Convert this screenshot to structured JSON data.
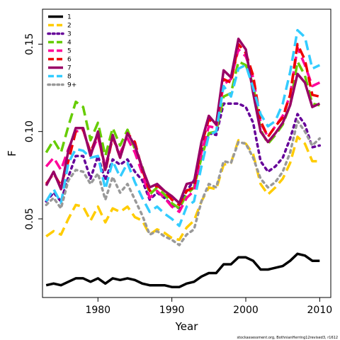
{
  "chart_data": {
    "type": "line",
    "title": "",
    "xlabel": "Year",
    "ylabel": "F",
    "xlim": [
      1972.5,
      2011.5
    ],
    "ylim": [
      0.005,
      0.17
    ],
    "xticks": [
      1980,
      1990,
      2000,
      2010
    ],
    "yticks": [
      0.05,
      0.1,
      0.15
    ],
    "ytick_labels": [
      "0.05",
      "0.10",
      "0.15"
    ],
    "grid": false,
    "legend_position": "top-left",
    "credit": "stockassessment.org, BothnianHerring12revised3, r1612",
    "x": [
      1973,
      1974,
      1975,
      1976,
      1977,
      1978,
      1979,
      1980,
      1981,
      1982,
      1983,
      1984,
      1985,
      1986,
      1987,
      1988,
      1989,
      1990,
      1991,
      1992,
      1993,
      1994,
      1995,
      1996,
      1997,
      1998,
      1999,
      2000,
      2001,
      2002,
      2003,
      2004,
      2005,
      2006,
      2007,
      2008,
      2009,
      2010
    ],
    "series": [
      {
        "name": "1",
        "color": "#000000",
        "dash": "solid",
        "values": [
          0.012,
          0.013,
          0.012,
          0.014,
          0.016,
          0.016,
          0.014,
          0.016,
          0.013,
          0.016,
          0.015,
          0.016,
          0.015,
          0.013,
          0.012,
          0.012,
          0.012,
          0.011,
          0.011,
          0.013,
          0.014,
          0.017,
          0.019,
          0.019,
          0.024,
          0.024,
          0.028,
          0.028,
          0.026,
          0.021,
          0.021,
          0.022,
          0.023,
          0.026,
          0.03,
          0.029,
          0.026,
          0.026
        ]
      },
      {
        "name": "2",
        "color": "#FFCC00",
        "dash": "dashed",
        "values": [
          0.04,
          0.043,
          0.041,
          0.05,
          0.058,
          0.057,
          0.049,
          0.057,
          0.048,
          0.056,
          0.054,
          0.057,
          0.051,
          0.049,
          0.041,
          0.044,
          0.042,
          0.039,
          0.038,
          0.045,
          0.049,
          0.06,
          0.068,
          0.067,
          0.081,
          0.082,
          0.095,
          0.093,
          0.087,
          0.07,
          0.064,
          0.068,
          0.073,
          0.082,
          0.097,
          0.093,
          0.083,
          0.083
        ]
      },
      {
        "name": "3",
        "color": "#660099",
        "dash": "dotted",
        "values": [
          0.06,
          0.065,
          0.06,
          0.074,
          0.086,
          0.086,
          0.073,
          0.086,
          0.072,
          0.084,
          0.081,
          0.084,
          0.077,
          0.072,
          0.061,
          0.065,
          0.062,
          0.058,
          0.056,
          0.066,
          0.072,
          0.088,
          0.099,
          0.098,
          0.116,
          0.116,
          0.116,
          0.114,
          0.105,
          0.083,
          0.077,
          0.08,
          0.085,
          0.096,
          0.11,
          0.104,
          0.091,
          0.092
        ]
      },
      {
        "name": "4",
        "color": "#66CC00",
        "dash": "dashed",
        "values": [
          0.088,
          0.095,
          0.088,
          0.103,
          0.117,
          0.114,
          0.095,
          0.105,
          0.086,
          0.102,
          0.092,
          0.101,
          0.09,
          0.08,
          0.064,
          0.068,
          0.064,
          0.059,
          0.056,
          0.064,
          0.068,
          0.085,
          0.099,
          0.1,
          0.12,
          0.122,
          0.14,
          0.138,
          0.127,
          0.101,
          0.093,
          0.098,
          0.104,
          0.115,
          0.14,
          0.132,
          0.116,
          0.115
        ]
      },
      {
        "name": "5",
        "color": "#FF0099",
        "dash": "dashed",
        "values": [
          0.08,
          0.085,
          0.078,
          0.09,
          0.1,
          0.101,
          0.087,
          0.097,
          0.08,
          0.096,
          0.088,
          0.096,
          0.088,
          0.076,
          0.062,
          0.066,
          0.062,
          0.057,
          0.054,
          0.062,
          0.066,
          0.088,
          0.103,
          0.102,
          0.127,
          0.13,
          0.147,
          0.143,
          0.131,
          0.105,
          0.097,
          0.103,
          0.109,
          0.121,
          0.148,
          0.138,
          0.126,
          0.128
        ]
      },
      {
        "name": "6",
        "color": "#EE0000",
        "dash": "dashed",
        "values": [
          0.07,
          0.076,
          0.069,
          0.083,
          0.1,
          0.101,
          0.088,
          0.099,
          0.077,
          0.097,
          0.085,
          0.099,
          0.094,
          0.078,
          0.066,
          0.069,
          0.066,
          0.061,
          0.058,
          0.066,
          0.068,
          0.092,
          0.107,
          0.104,
          0.13,
          0.128,
          0.15,
          0.145,
          0.132,
          0.106,
          0.097,
          0.103,
          0.108,
          0.121,
          0.15,
          0.141,
          0.121,
          0.12
        ]
      },
      {
        "name": "7",
        "color": "#990066",
        "dash": "solid",
        "values": [
          0.069,
          0.077,
          0.067,
          0.089,
          0.102,
          0.102,
          0.086,
          0.1,
          0.078,
          0.098,
          0.085,
          0.099,
          0.092,
          0.079,
          0.068,
          0.07,
          0.066,
          0.063,
          0.059,
          0.07,
          0.071,
          0.094,
          0.109,
          0.104,
          0.135,
          0.131,
          0.153,
          0.147,
          0.122,
          0.1,
          0.094,
          0.099,
          0.105,
          0.115,
          0.133,
          0.128,
          0.114,
          0.116
        ]
      },
      {
        "name": "8",
        "color": "#33CCFF",
        "dash": "dashed",
        "values": [
          0.06,
          0.067,
          0.059,
          0.082,
          0.09,
          0.089,
          0.085,
          0.086,
          0.067,
          0.083,
          0.074,
          0.082,
          0.071,
          0.062,
          0.054,
          0.057,
          0.053,
          0.05,
          0.046,
          0.057,
          0.06,
          0.08,
          0.098,
          0.1,
          0.126,
          0.12,
          0.136,
          0.138,
          0.125,
          0.11,
          0.103,
          0.106,
          0.116,
          0.134,
          0.158,
          0.154,
          0.136,
          0.138
        ]
      },
      {
        "name": "9+",
        "color": "#999999",
        "dash": "dotted",
        "values": [
          0.058,
          0.062,
          0.056,
          0.072,
          0.078,
          0.077,
          0.07,
          0.076,
          0.061,
          0.074,
          0.065,
          0.07,
          0.061,
          0.052,
          0.041,
          0.043,
          0.04,
          0.038,
          0.035,
          0.041,
          0.044,
          0.06,
          0.07,
          0.068,
          0.083,
          0.082,
          0.094,
          0.093,
          0.085,
          0.073,
          0.068,
          0.071,
          0.077,
          0.088,
          0.106,
          0.1,
          0.092,
          0.096
        ]
      }
    ]
  }
}
